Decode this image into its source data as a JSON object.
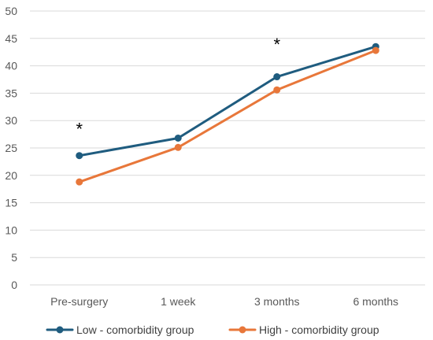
{
  "chart_data": {
    "type": "line",
    "categories": [
      "Pre-surgery",
      "1 week",
      "3 months",
      "6 months"
    ],
    "series": [
      {
        "name": "Low - comorbidity group",
        "values": [
          23.6,
          26.8,
          38.0,
          43.5
        ],
        "color": "#1F5C7F"
      },
      {
        "name": "High - comorbidity group",
        "values": [
          18.8,
          25.1,
          35.6,
          42.8
        ],
        "color": "#E8773A"
      }
    ],
    "ylim": [
      0,
      50
    ],
    "yticks": [
      0,
      5,
      10,
      15,
      20,
      25,
      30,
      35,
      40,
      45,
      50
    ],
    "grid": true,
    "legend_position": "bottom",
    "annotations": [
      {
        "text": "*",
        "category": "Pre-surgery",
        "y": 28.5
      },
      {
        "text": "*",
        "category": "3 months",
        "y": 44
      }
    ],
    "gridline_color": "#D9D9D9",
    "axis_text_color": "#595959"
  }
}
